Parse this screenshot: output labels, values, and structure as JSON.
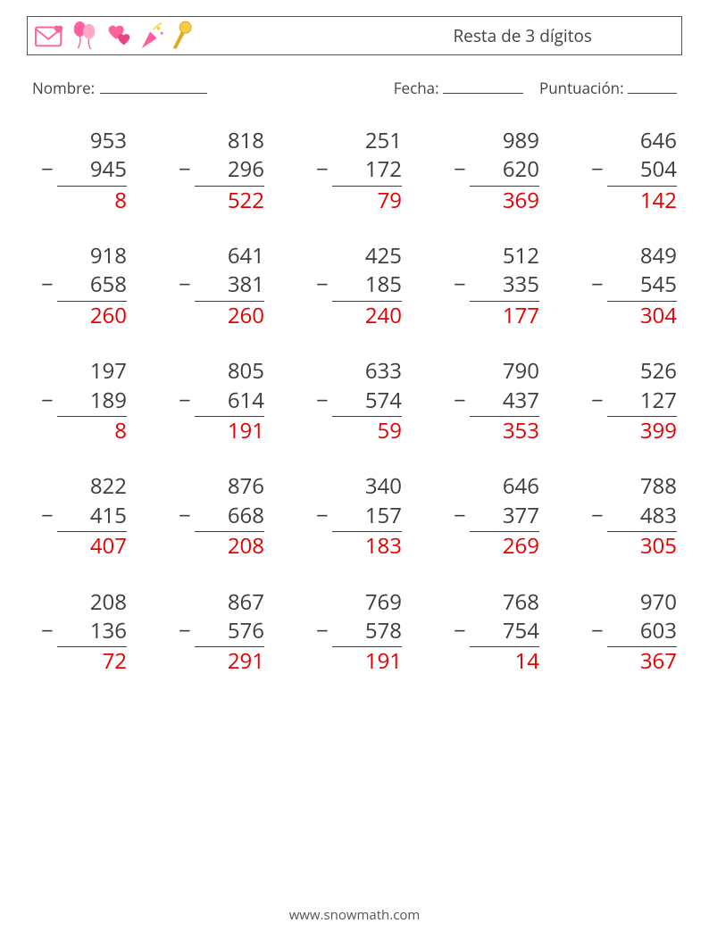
{
  "header": {
    "title": "Resta de 3 dígitos",
    "icon_names": [
      "envelope-heart-icon",
      "balloons-icon",
      "hearts-icon",
      "party-popper-icon",
      "microphone-icon"
    ],
    "icon_pink": "#ff5f9e",
    "icon_pink_dark": "#e8447f",
    "icon_yellow": "#f7c948",
    "icon_yellow_dark": "#e0a820"
  },
  "info": {
    "name_label": "Nombre:",
    "date_label": "Fecha:",
    "score_label": "Puntuación:",
    "name_line_width": 120,
    "date_line_width": 90,
    "score_line_width": 55
  },
  "worksheet": {
    "operator": "−",
    "text_color": "#3d3d3d",
    "answer_color": "#e20000",
    "font_size": 24,
    "columns": 5,
    "rows": 5,
    "problems": [
      {
        "a": 953,
        "b": 945,
        "ans": 8
      },
      {
        "a": 818,
        "b": 296,
        "ans": 522
      },
      {
        "a": 251,
        "b": 172,
        "ans": 79
      },
      {
        "a": 989,
        "b": 620,
        "ans": 369
      },
      {
        "a": 646,
        "b": 504,
        "ans": 142
      },
      {
        "a": 918,
        "b": 658,
        "ans": 260
      },
      {
        "a": 641,
        "b": 381,
        "ans": 260
      },
      {
        "a": 425,
        "b": 185,
        "ans": 240
      },
      {
        "a": 512,
        "b": 335,
        "ans": 177
      },
      {
        "a": 849,
        "b": 545,
        "ans": 304
      },
      {
        "a": 197,
        "b": 189,
        "ans": 8
      },
      {
        "a": 805,
        "b": 614,
        "ans": 191
      },
      {
        "a": 633,
        "b": 574,
        "ans": 59
      },
      {
        "a": 790,
        "b": 437,
        "ans": 353
      },
      {
        "a": 526,
        "b": 127,
        "ans": 399
      },
      {
        "a": 822,
        "b": 415,
        "ans": 407
      },
      {
        "a": 876,
        "b": 668,
        "ans": 208
      },
      {
        "a": 340,
        "b": 157,
        "ans": 183
      },
      {
        "a": 646,
        "b": 377,
        "ans": 269
      },
      {
        "a": 788,
        "b": 483,
        "ans": 305
      },
      {
        "a": 208,
        "b": 136,
        "ans": 72
      },
      {
        "a": 867,
        "b": 576,
        "ans": 291
      },
      {
        "a": 769,
        "b": 578,
        "ans": 191
      },
      {
        "a": 768,
        "b": 754,
        "ans": 14
      },
      {
        "a": 970,
        "b": 603,
        "ans": 367
      }
    ]
  },
  "footer": {
    "url": "www.snowmath.com"
  }
}
